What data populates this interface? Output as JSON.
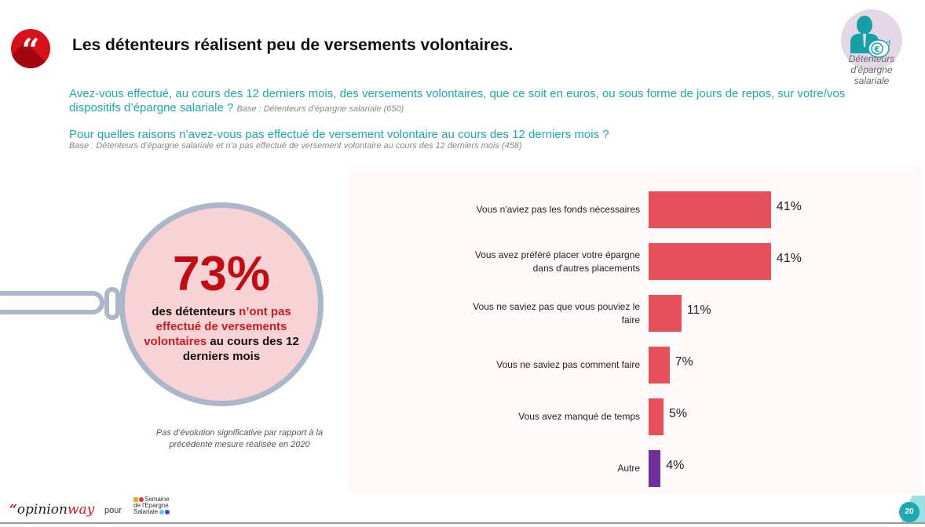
{
  "header": {
    "quote_glyph": "“",
    "title": "Les détenteurs réalisent peu de versements volontaires.",
    "persona": {
      "icon": "person-piggy-bank-euro-icon",
      "label_line1": "Détenteurs",
      "label_line2": "d'épargne",
      "label_line3": "salariale"
    }
  },
  "questions": {
    "q1_text": "Avez-vous effectué, au cours des 12 derniers mois, des versements volontaires, que ce soit en euros, ou sous forme de jours de repos, sur votre/vos dispositifs d’épargne salariale ? ",
    "q1_base": "Base : Détenteurs d’épargne salariale (650)",
    "q2_text": "Pour quelles raisons n’avez-vous pas effectué de versement volontaire au cours des 12 derniers mois ?",
    "q2_base": "Base : Détenteurs d’épargne salariale et n’a pas effectué de versement volontaire au cours des 12 derniers mois (458)"
  },
  "highlight": {
    "percent": "73%",
    "text_part1": "des détenteurs ",
    "text_highlight": "n’ont pas effectué de versements volontaires",
    "text_part2": " au cours des 12 derniers mois",
    "note_line1": "Pas d’évolution significative par rapport à la",
    "note_line2": "précédente mesure réalisée en 2020"
  },
  "chart_data": {
    "type": "bar",
    "orientation": "horizontal",
    "title": "Pour quelles raisons n’avez-vous pas effectué de versement volontaire au cours des 12 derniers mois ?",
    "xlabel": "",
    "ylabel": "",
    "unit": "%",
    "xlim": [
      0,
      100
    ],
    "grid": false,
    "categories": [
      [
        "Vous n'aviez pas les fonds nécessaires"
      ],
      [
        "Vous avez préféré placer votre épargne",
        "dans d'autres placements"
      ],
      [
        "Vous ne saviez pas que vous pouviez le",
        "faire"
      ],
      [
        "Vous ne saviez pas comment faire"
      ],
      [
        "Vous avez manqué de temps"
      ],
      [
        "Autre"
      ]
    ],
    "values": [
      41,
      41,
      11,
      7,
      5,
      4
    ],
    "value_labels": [
      "41%",
      "41%",
      "11%",
      "7%",
      "5%",
      "4%"
    ],
    "colors": [
      "#e5505a",
      "#e5505a",
      "#e5505a",
      "#e5505a",
      "#e5505a",
      "#7030a0"
    ]
  },
  "footer": {
    "brand_quote": "“",
    "brand_opinion": "opinion",
    "brand_way": "way",
    "pour": "pour",
    "partner_line1": "Semaine",
    "partner_line2": "de l'Epargne",
    "partner_line3": "Salariale",
    "page_number": "20"
  },
  "colors": {
    "accent_teal": "#1ea9b0",
    "accent_red": "#d8101b",
    "bar_red": "#e5505a",
    "bar_purple": "#7030a0"
  }
}
